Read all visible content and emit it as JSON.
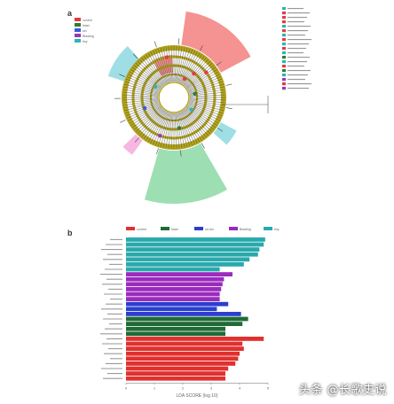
{
  "panel_a": {
    "label": "a",
    "legend_top": [
      "control",
      "blast",
      "sin",
      "Blasting",
      "tiny"
    ],
    "legend_top_colors": [
      "#e63946",
      "#2e7d32",
      "#3b5bdb",
      "#9c36b5",
      "#2ab7b0"
    ],
    "legend_right_count": 19,
    "colors": {
      "ring": "#b5a61e",
      "red": "#f26d6d",
      "cyan": "#7fd3dc",
      "green": "#7ed39a",
      "pink": "#f3a0d6"
    }
  },
  "panel_b": {
    "label": "b",
    "legend": [
      {
        "name": "control",
        "color": "#e0302f"
      },
      {
        "name": "blast",
        "color": "#1f6b36"
      },
      {
        "name": "sin.lev",
        "color": "#2c3ed0"
      },
      {
        "name": "Blasting",
        "color": "#9a2bbd"
      },
      {
        "name": "tiny",
        "color": "#2aa9ad"
      }
    ],
    "x_ticks": [
      "0",
      "1",
      "2",
      "3",
      "4",
      "5"
    ],
    "xlabel": "LDA SCORE (log 10)"
  },
  "chart_data": {
    "type": "bar",
    "orientation": "horizontal",
    "xlim": [
      0,
      5
    ],
    "series": [
      {
        "name": "tiny",
        "values": [
          4.9,
          4.85,
          4.7,
          4.65,
          4.35,
          4.15,
          3.3
        ]
      },
      {
        "name": "Blasting",
        "values": [
          3.75,
          3.45,
          3.4,
          3.35,
          3.3,
          3.3
        ]
      },
      {
        "name": "sin.lev",
        "values": [
          3.6,
          3.2,
          4.05
        ]
      },
      {
        "name": "blast",
        "values": [
          4.3,
          4.1,
          3.5,
          3.5
        ]
      },
      {
        "name": "control",
        "values": [
          4.85,
          4.1,
          4.15,
          4.0,
          3.95,
          3.85,
          3.6,
          3.5,
          3.5
        ]
      }
    ]
  },
  "watermark": "头条 @长歌史说"
}
